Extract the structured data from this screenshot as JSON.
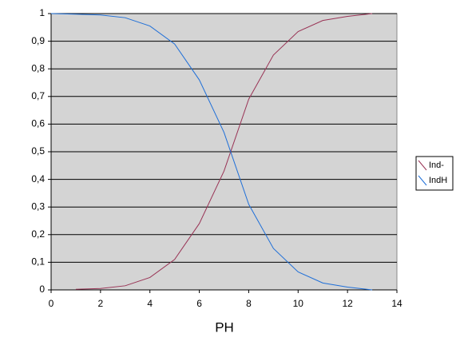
{
  "chart_data": {
    "type": "line",
    "x_label": "PH",
    "x": [
      0,
      1,
      2,
      3,
      4,
      5,
      6,
      7,
      8,
      9,
      10,
      11,
      12,
      13
    ],
    "series": [
      {
        "name": "Ind-",
        "color": "#993355",
        "values": [
          null,
          0.002,
          0.005,
          0.015,
          0.045,
          0.11,
          0.24,
          0.43,
          0.69,
          0.85,
          0.935,
          0.975,
          0.99,
          1
        ]
      },
      {
        "name": "IndH",
        "color": "#1f6fd8",
        "values": [
          1,
          0.998,
          0.995,
          0.985,
          0.955,
          0.89,
          0.76,
          0.57,
          0.31,
          0.15,
          0.065,
          0.025,
          0.01,
          0
        ]
      }
    ],
    "xlim": [
      0,
      14
    ],
    "xticks": [
      0,
      2,
      4,
      6,
      8,
      10,
      12,
      14
    ],
    "ylim": [
      0,
      1
    ],
    "yticks": [
      0,
      {
        "value": 0.1,
        "label": "0,1"
      },
      {
        "value": 0.2,
        "label": "0,2"
      },
      {
        "value": 0.3,
        "label": "0,3"
      },
      {
        "value": 0.4,
        "label": "0,4"
      },
      {
        "value": 0.5,
        "label": "0,5"
      },
      {
        "value": 0.6,
        "label": "0,6"
      },
      {
        "value": 0.7,
        "label": "0,7"
      },
      {
        "value": 0.8,
        "label": "0,8"
      },
      {
        "value": 0.9,
        "label": "0,9"
      },
      1
    ],
    "grid": true,
    "legend": "right",
    "background": "#d4d4d4"
  }
}
